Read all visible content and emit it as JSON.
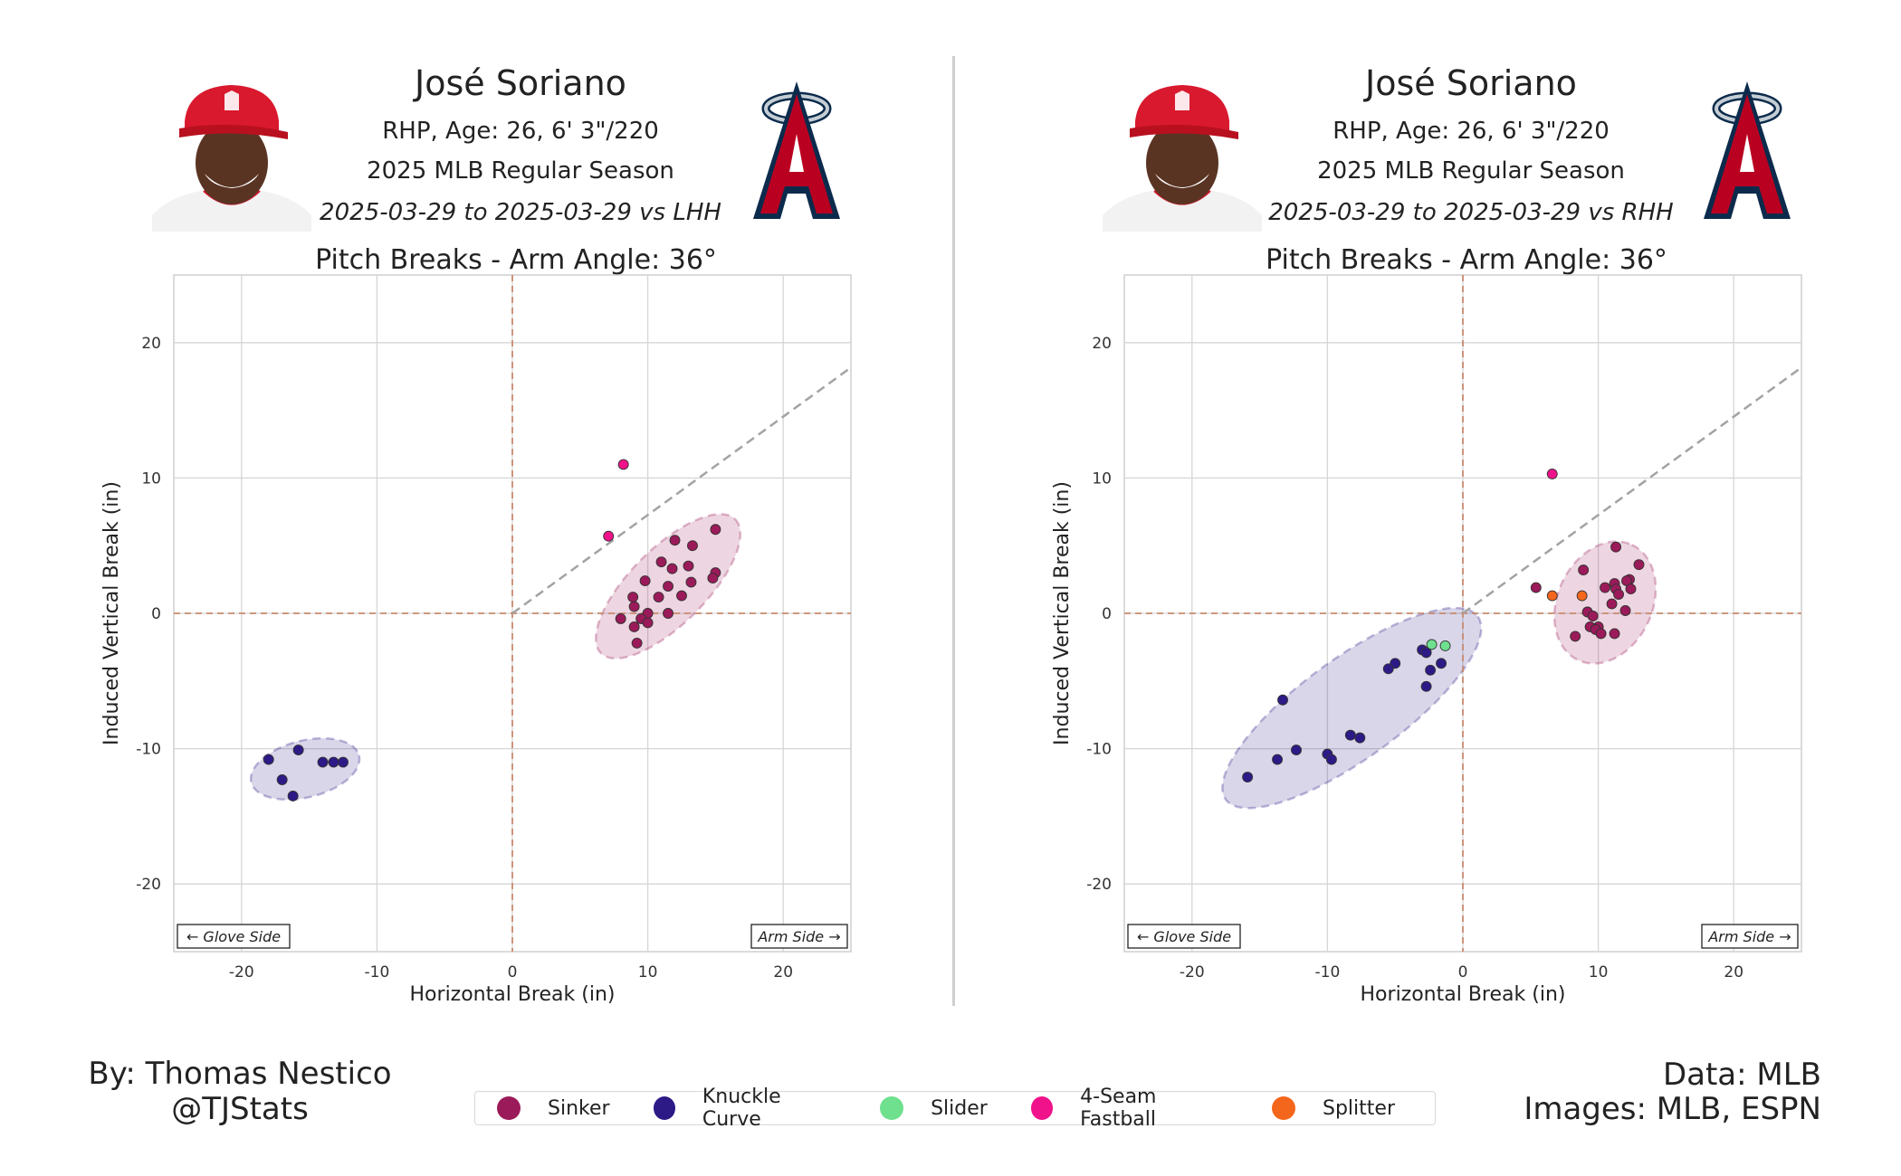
{
  "colors": {
    "Sinker": "#9b1a5a",
    "Knuckle Curve": "#2e1a87",
    "Slider": "#6ee08e",
    "4-Seam Fastball": "#f0128a",
    "Splitter": "#f4661b"
  },
  "credits": {
    "author": "By: Thomas Nestico",
    "handle": "@TJStats",
    "data": "Data: MLB",
    "images": "Images: MLB, ESPN"
  },
  "legend": [
    "Sinker",
    "Knuckle Curve",
    "Slider",
    "4-Seam Fastball",
    "Splitter"
  ],
  "panels": [
    {
      "name": "José Soriano",
      "line1": "RHP, Age: 26, 6' 3\"/220",
      "line2": "2025 MLB Regular Season",
      "line3": "2025-03-29 to 2025-03-29 vs LHH",
      "glove_label": "← Glove Side",
      "arm_label": "Arm Side →"
    },
    {
      "name": "José Soriano",
      "line1": "RHP, Age: 26, 6' 3\"/220",
      "line2": "2025 MLB Regular Season",
      "line3": "2025-03-29 to 2025-03-29 vs RHH",
      "glove_label": "← Glove Side",
      "arm_label": "Arm Side →"
    }
  ],
  "chart_data": [
    {
      "type": "scatter",
      "title": "Pitch Breaks - Arm Angle: 36°",
      "xlabel": "Horizontal Break (in)",
      "ylabel": "Induced Vertical Break (in)",
      "xlim": [
        -25,
        25
      ],
      "ylim": [
        -25,
        25
      ],
      "xticks": [
        -20,
        -10,
        0,
        10,
        20
      ],
      "yticks": [
        -20,
        -10,
        0,
        10,
        20
      ],
      "grid": true,
      "arm_angle_deg": 36,
      "series": [
        {
          "name": "Sinker",
          "x": [
            15,
            15,
            14.8,
            13.3,
            13,
            13.2,
            12,
            11.8,
            11.5,
            11,
            12.5,
            10.8,
            11.5,
            9.8,
            8.9,
            9,
            10,
            8,
            9.5,
            9,
            10,
            9.2
          ],
          "y": [
            6.2,
            3,
            2.6,
            5,
            3.5,
            2.3,
            5.4,
            3.3,
            2,
            3.8,
            1.3,
            1.2,
            0,
            2.4,
            1.2,
            0.5,
            0,
            -0.4,
            -0.4,
            -1,
            -0.7,
            -2.2
          ]
        },
        {
          "name": "Knuckle Curve",
          "x": [
            -18,
            -15.8,
            -12.5,
            -13.2,
            -14,
            -17,
            -16.2
          ],
          "y": [
            -10.8,
            -10.1,
            -11,
            -11,
            -11,
            -12.3,
            -13.5
          ]
        },
        {
          "name": "4-Seam Fastball",
          "x": [
            8.2,
            7.1
          ],
          "y": [
            11,
            5.7
          ]
        }
      ],
      "ellipses": [
        {
          "name": "Sinker",
          "cx": 11.5,
          "cy": 2,
          "rx": 7,
          "ry": 2.8,
          "angle_deg": 45
        },
        {
          "name": "Knuckle Curve",
          "cx": -15.3,
          "cy": -11.5,
          "rx": 4.1,
          "ry": 2.1,
          "angle_deg": 14
        }
      ]
    },
    {
      "type": "scatter",
      "title": "Pitch Breaks - Arm Angle: 36°",
      "xlabel": "Horizontal Break (in)",
      "ylabel": "Induced Vertical Break (in)",
      "xlim": [
        -25,
        25
      ],
      "ylim": [
        -25,
        25
      ],
      "xticks": [
        -20,
        -10,
        0,
        10,
        20
      ],
      "yticks": [
        -20,
        -10,
        0,
        10,
        20
      ],
      "grid": true,
      "arm_angle_deg": 36,
      "series": [
        {
          "name": "Sinker",
          "x": [
            11.3,
            13,
            12.3,
            12.1,
            12.4,
            11.2,
            11.3,
            11.5,
            10.5,
            8.9,
            5.4,
            9.2,
            9.6,
            12,
            11,
            9.4,
            10,
            9.8,
            10.2,
            8.3,
            11.2
          ],
          "y": [
            4.9,
            3.6,
            2.5,
            2.4,
            1.8,
            2.2,
            1.8,
            1.4,
            1.9,
            3.2,
            1.9,
            0.1,
            -0.2,
            0.2,
            0.7,
            -1,
            -1,
            -1.2,
            -1.5,
            -1.7,
            -1.5
          ]
        },
        {
          "name": "Knuckle Curve",
          "x": [
            -3,
            -2.7,
            -2.4,
            -1.6,
            -5,
            -5.5,
            -2.7,
            -13.3,
            -8.3,
            -7.6,
            -10,
            -9.7,
            -12.3,
            -13.7,
            -15.9
          ],
          "y": [
            -2.7,
            -2.9,
            -4.2,
            -3.7,
            -3.7,
            -4.1,
            -5.4,
            -6.4,
            -9,
            -9.2,
            -10.4,
            -10.8,
            -10.1,
            -10.8,
            -12.1
          ]
        },
        {
          "name": "Slider",
          "x": [
            -2.3,
            -1.3
          ],
          "y": [
            -2.3,
            -2.4
          ]
        },
        {
          "name": "4-Seam Fastball",
          "x": [
            6.6
          ],
          "y": [
            10.3
          ]
        },
        {
          "name": "Splitter",
          "x": [
            6.6,
            8.8
          ],
          "y": [
            1.3,
            1.3
          ]
        }
      ],
      "ellipses": [
        {
          "name": "Sinker",
          "cx": 10.5,
          "cy": 0.8,
          "rx": 4.7,
          "ry": 3.5,
          "angle_deg": 65
        },
        {
          "name": "Knuckle Curve",
          "cx": -8.2,
          "cy": -7,
          "rx": 11.5,
          "ry": 3.7,
          "angle_deg": 36
        }
      ]
    }
  ]
}
